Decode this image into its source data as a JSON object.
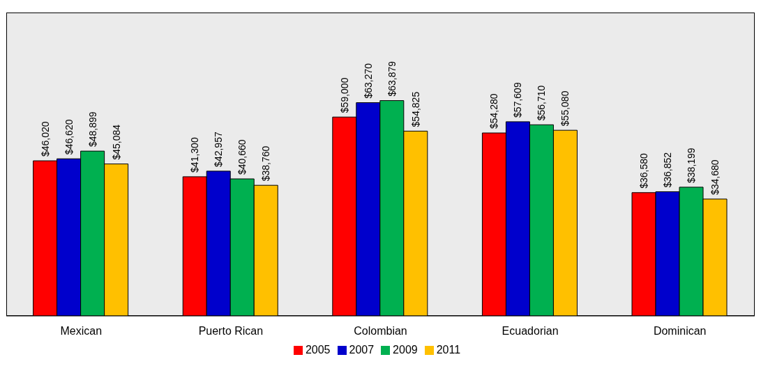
{
  "chart_data": {
    "type": "bar",
    "categories": [
      "Mexican",
      "Puerto Rican",
      "Colombian",
      "Ecuadorian",
      "Dominican"
    ],
    "ylim": [
      0,
      90000
    ],
    "tick_labels": "x",
    "legend": "bottom",
    "grid": false,
    "series": [
      {
        "name": "2005",
        "color": "#ff0000",
        "values": [
          46020,
          41300,
          59000,
          54280,
          36580
        ],
        "value_labels": [
          "$46,020",
          "$41,300",
          "$59,000",
          "$54,280",
          "$36,580"
        ]
      },
      {
        "name": "2007",
        "color": "#0000cc",
        "values": [
          46620,
          42957,
          63270,
          57609,
          36852
        ],
        "value_labels": [
          "$46,620",
          "$42,957",
          "$63,270",
          "$57,609",
          "$36,852"
        ]
      },
      {
        "name": "2009",
        "color": "#00b050",
        "values": [
          48899,
          40660,
          63879,
          56710,
          38199
        ],
        "value_labels": [
          "$48,899",
          "$40,660",
          "$63,879",
          "$56,710",
          "$38,199"
        ]
      },
      {
        "name": "2011",
        "color": "#ffc000",
        "values": [
          45084,
          38760,
          54825,
          55080,
          34680
        ],
        "value_labels": [
          "$45,084",
          "$38,760",
          "$54,825",
          "$55,080",
          "$34,680"
        ]
      }
    ]
  }
}
